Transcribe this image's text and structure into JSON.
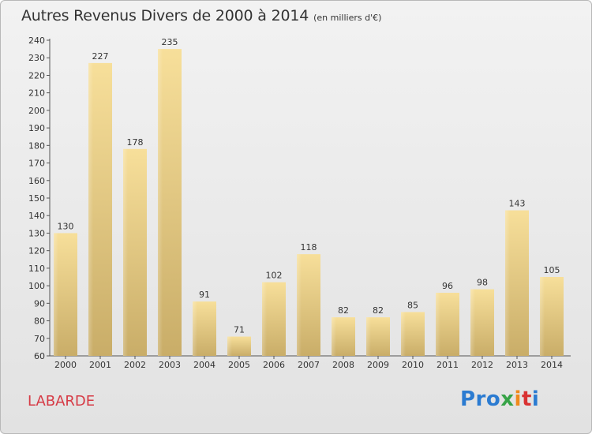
{
  "chart_data": {
    "type": "bar",
    "title": "Autres Revenus Divers de 2000 à 2014",
    "subtitle": "(en milliers d'€)",
    "xlabel": "",
    "ylabel": "",
    "categories": [
      "2000",
      "2001",
      "2002",
      "2003",
      "2004",
      "2005",
      "2006",
      "2007",
      "2008",
      "2009",
      "2010",
      "2011",
      "2012",
      "2013",
      "2014"
    ],
    "values": [
      130,
      227,
      178,
      235,
      91,
      71,
      102,
      118,
      82,
      82,
      85,
      96,
      98,
      143,
      105
    ],
    "ylim": [
      60,
      240
    ],
    "yticks": [
      60,
      70,
      80,
      90,
      100,
      110,
      120,
      130,
      140,
      150,
      160,
      170,
      180,
      190,
      200,
      210,
      220,
      230,
      240
    ],
    "grid": false,
    "bar_color": "#e9cf85"
  },
  "footer": {
    "town": "LABARDE",
    "logo_parts": [
      "Pro",
      "x",
      "i",
      "t",
      "i"
    ]
  }
}
